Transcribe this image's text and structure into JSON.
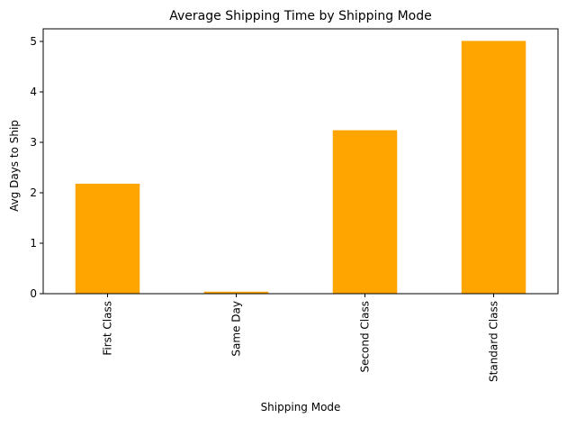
{
  "chart_data": {
    "type": "bar",
    "title": "Average Shipping Time by Shipping Mode",
    "xlabel": "Shipping Mode",
    "ylabel": "Avg Days to Ship",
    "categories": [
      "First Class",
      "Same Day",
      "Second Class",
      "Standard Class"
    ],
    "values": [
      2.18,
      0.04,
      3.24,
      5.01
    ],
    "ylim": [
      0,
      5.25
    ],
    "yticks": [
      0,
      1,
      2,
      3,
      4,
      5
    ],
    "bar_color": "#ffa500",
    "grid": false,
    "legend": "none"
  }
}
